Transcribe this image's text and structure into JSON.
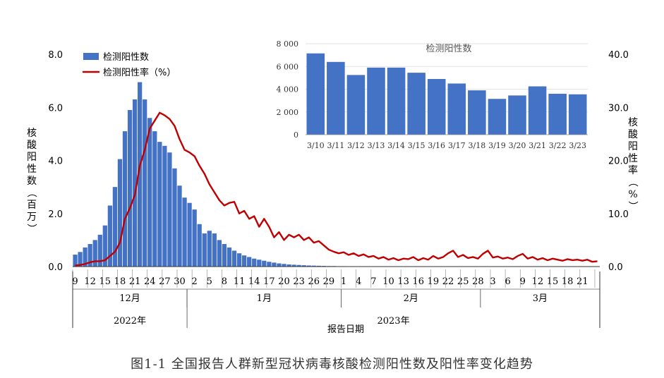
{
  "caption": "图1-1   全国报告人群新型冠状病毒核酸检测阳性数及阳性率变化趋势",
  "colors": {
    "bar": "#4472C4",
    "line": "#C00000",
    "axis": "#000000"
  },
  "chart_data": [
    {
      "type": "bar+line",
      "legend": [
        "检测阳性数",
        "检测阳性率（%）"
      ],
      "legend_position": "top-left",
      "ylabel_left": "核酸阳性数（百万）",
      "ylabel_right": "核酸阳性率（%）",
      "xlabel": "报告日期",
      "ylim_left": [
        0,
        8
      ],
      "ylim_right": [
        0,
        40
      ],
      "yticks_left": [
        "0.0",
        "2.0",
        "4.0",
        "6.0",
        "8.0"
      ],
      "yticks_right": [
        "0.0",
        "10.0",
        "20.0",
        "30.0",
        "40.0"
      ],
      "x_tick_labels": [
        "9",
        "12",
        "15",
        "18",
        "21",
        "24",
        "27",
        "30",
        "2",
        "5",
        "8",
        "11",
        "14",
        "17",
        "20",
        "23",
        "26",
        "29",
        "1",
        "4",
        "7",
        "10",
        "13",
        "16",
        "19",
        "22",
        "25",
        "28",
        "3",
        "6",
        "9",
        "12",
        "15",
        "18",
        "21"
      ],
      "months": [
        {
          "label": "12月",
          "start": 0,
          "end": 23
        },
        {
          "label": "1月",
          "start": 23,
          "end": 54
        },
        {
          "label": "2月",
          "start": 54,
          "end": 82
        },
        {
          "label": "3月",
          "start": 82,
          "end": 106
        }
      ],
      "years": [
        {
          "label": "2022年",
          "start": 0,
          "end": 23
        },
        {
          "label": "2023年",
          "start": 23,
          "end": 106
        }
      ],
      "series": [
        {
          "name": "检测阳性数",
          "kind": "bar",
          "axis": "left",
          "values": [
            0.45,
            0.55,
            0.72,
            0.85,
            1.0,
            1.2,
            1.55,
            2.3,
            3.0,
            4.05,
            5.1,
            5.9,
            6.3,
            6.95,
            6.3,
            5.6,
            5.1,
            4.7,
            4.55,
            4.3,
            3.7,
            3.05,
            2.6,
            2.4,
            2.15,
            1.6,
            1.25,
            1.35,
            1.25,
            1.0,
            0.85,
            0.72,
            0.6,
            0.5,
            0.42,
            0.36,
            0.3,
            0.26,
            0.22,
            0.18,
            0.15,
            0.12,
            0.1,
            0.08,
            0.07,
            0.06,
            0.05,
            0.04,
            0.035,
            0.03,
            0.025,
            0.02,
            0.02,
            0.015,
            0.015,
            0.01,
            0.01,
            0.01,
            0.01,
            0.008,
            0.008,
            0.008,
            0.007,
            0.007,
            0.007,
            0.006,
            0.006,
            0.006,
            0.006,
            0.006,
            0.006,
            0.006,
            0.006,
            0.006,
            0.006,
            0.006,
            0.006,
            0.006,
            0.006,
            0.006,
            0.006,
            0.006,
            0.006,
            0.006,
            0.006,
            0.006,
            0.006,
            0.006,
            0.006,
            0.006,
            0.006,
            0.006,
            0.006,
            0.006,
            0.006,
            0.006,
            0.006,
            0.006,
            0.006,
            0.006,
            0.006,
            0.006,
            0.006,
            0.006,
            0.006,
            0.006
          ]
        },
        {
          "name": "检测阳性率（%）",
          "kind": "line",
          "axis": "right",
          "values": [
            0.2,
            0.3,
            0.5,
            0.8,
            1.0,
            1.0,
            1.2,
            2.0,
            2.8,
            4.5,
            9.0,
            11.0,
            13.5,
            19.0,
            22.0,
            26.0,
            27.5,
            29.0,
            28.5,
            27.8,
            26.5,
            24.0,
            22.0,
            21.5,
            20.8,
            19.0,
            17.5,
            15.5,
            14.0,
            12.5,
            11.5,
            12.0,
            12.2,
            10.0,
            10.5,
            9.0,
            9.5,
            7.5,
            9.0,
            7.5,
            5.5,
            6.5,
            5.0,
            6.0,
            5.5,
            6.0,
            5.0,
            5.5,
            4.5,
            4.8,
            4.0,
            3.2,
            2.8,
            2.5,
            2.7,
            2.2,
            2.5,
            2.0,
            2.3,
            1.8,
            2.0,
            1.5,
            1.8,
            1.3,
            1.6,
            1.2,
            1.5,
            1.4,
            1.8,
            1.2,
            1.6,
            1.3,
            2.0,
            1.5,
            1.8,
            2.5,
            3.0,
            1.8,
            2.2,
            1.6,
            1.8,
            1.5,
            2.4,
            3.0,
            1.7,
            1.9,
            1.5,
            1.7,
            1.4,
            2.0,
            2.4,
            1.5,
            1.8,
            1.3,
            1.6,
            1.2,
            1.5,
            1.3,
            1.1,
            1.4,
            1.2,
            1.3,
            1.1,
            1.3,
            0.9,
            1.0
          ]
        }
      ]
    },
    {
      "type": "bar",
      "title": "检测阳性数",
      "categories": [
        "3/10",
        "3/11",
        "3/12",
        "3/13",
        "3/14",
        "3/15",
        "3/16",
        "3/17",
        "3/18",
        "3/19",
        "3/20",
        "3/21",
        "3/22",
        "3/23"
      ],
      "values": [
        7150,
        6400,
        5250,
        5900,
        5900,
        5450,
        4900,
        4500,
        3900,
        3150,
        3450,
        4250,
        3600,
        3550
      ],
      "ylim": [
        0,
        8000
      ],
      "yticks": [
        "0",
        "2 000",
        "4 000",
        "6 000",
        "8 000"
      ]
    }
  ]
}
